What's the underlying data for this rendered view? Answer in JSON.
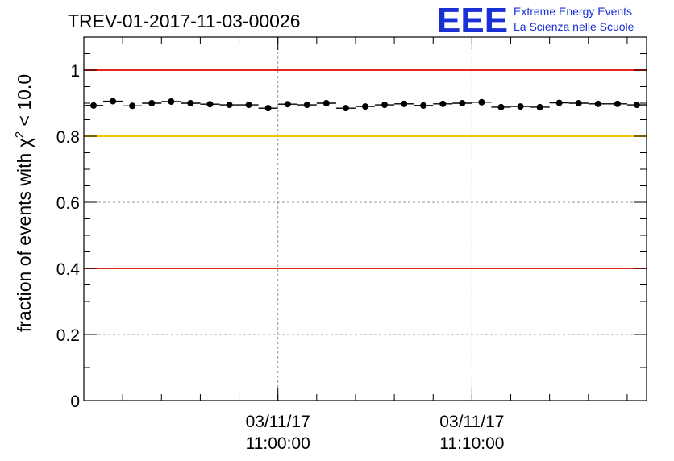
{
  "chart_data": {
    "type": "scatter",
    "title": "TREV-01-2017-11-03-00026",
    "ylabel_prefix": "fraction of events with ",
    "ylabel_chi": "χ",
    "ylabel_sup": "2",
    "ylabel_suffix": " < 10.0",
    "ylim": [
      0,
      1.1
    ],
    "yticks": [
      {
        "value": 0,
        "label": "0"
      },
      {
        "value": 0.2,
        "label": "0.2"
      },
      {
        "value": 0.4,
        "label": "0.4"
      },
      {
        "value": 0.6,
        "label": "0.6"
      },
      {
        "value": 0.8,
        "label": "0.8"
      },
      {
        "value": 1.0,
        "label": "1"
      }
    ],
    "xlim_minutes": [
      0,
      29
    ],
    "xticks": [
      {
        "value": 10,
        "date": "03/11/17",
        "time": "11:00:00"
      },
      {
        "value": 20,
        "date": "03/11/17",
        "time": "11:10:00"
      }
    ],
    "grid": true,
    "reference_lines": [
      {
        "y": 1.0,
        "color": "#e8261c"
      },
      {
        "y": 0.8,
        "color": "#f5c400"
      },
      {
        "y": 0.4,
        "color": "#e8261c"
      }
    ],
    "x_minutes": [
      0.5,
      1.5,
      2.5,
      3.5,
      4.5,
      5.5,
      6.5,
      7.5,
      8.5,
      9.5,
      10.5,
      11.5,
      12.5,
      13.5,
      14.5,
      15.5,
      16.5,
      17.5,
      18.5,
      19.5,
      20.5,
      21.5,
      22.5,
      23.5,
      24.5,
      25.5,
      26.5,
      27.5,
      28.5
    ],
    "values": [
      0.893,
      0.906,
      0.892,
      0.9,
      0.905,
      0.9,
      0.897,
      0.895,
      0.895,
      0.885,
      0.897,
      0.895,
      0.9,
      0.885,
      0.89,
      0.895,
      0.898,
      0.893,
      0.898,
      0.9,
      0.903,
      0.888,
      0.89,
      0.888,
      0.901,
      0.9,
      0.898,
      0.898,
      0.895
    ]
  },
  "logo": {
    "mark": "EEE",
    "line1": "Extreme Energy Events",
    "line2": "La Scienza nelle Scuole",
    "color": "#1a2fd6"
  }
}
